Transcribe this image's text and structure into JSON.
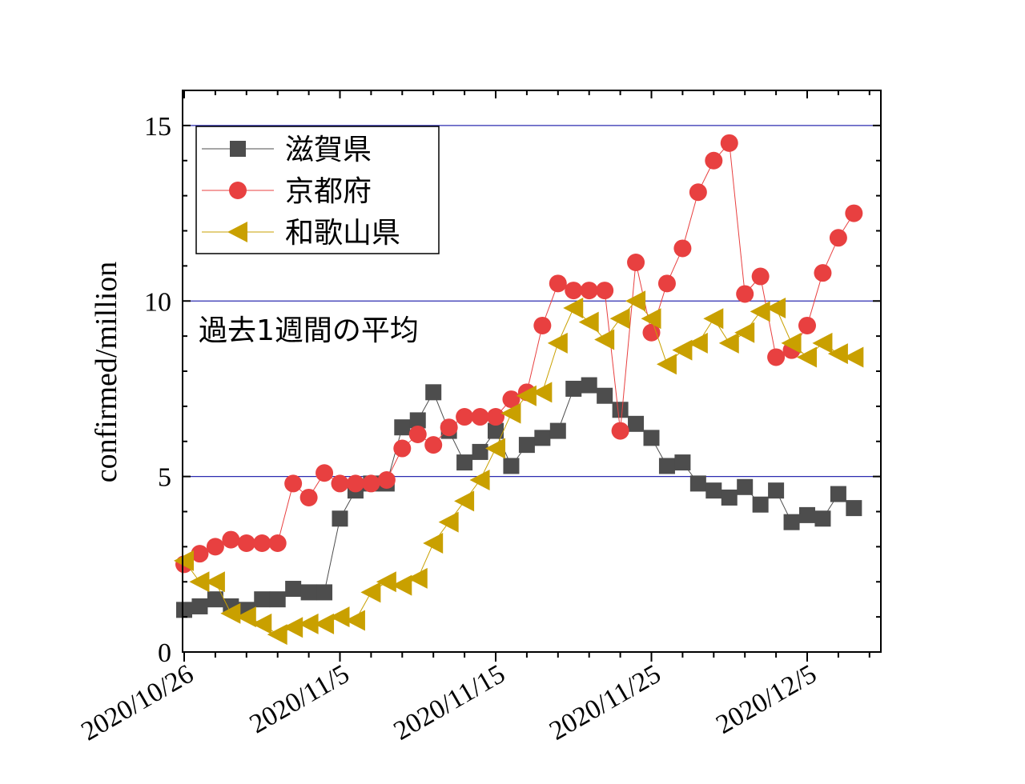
{
  "chart_data": {
    "type": "line",
    "xlabel": "",
    "ylabel": "confirmed/million",
    "annotation": "過去1週間の平均",
    "x_start": "2020/10/26",
    "x_tick_labels": [
      "2020/10/26",
      "2020/11/5",
      "2020/11/15",
      "2020/11/25",
      "2020/12/5"
    ],
    "y_ticks": [
      "0",
      "5",
      "10",
      "15"
    ],
    "ylim": [
      0,
      16
    ],
    "grid": "horizontal lines at 5, 10, 15",
    "legend_position": "top-left",
    "series": [
      {
        "name": "滋賀県",
        "color": "#4d4d4d",
        "marker": "square",
        "values": [
          1.2,
          1.3,
          1.5,
          1.3,
          1.2,
          1.5,
          1.5,
          1.8,
          1.7,
          1.7,
          3.8,
          4.6,
          4.8,
          4.8,
          6.4,
          6.6,
          7.4,
          6.3,
          5.4,
          5.7,
          6.3,
          5.3,
          5.9,
          6.1,
          6.3,
          7.5,
          7.6,
          7.3,
          6.9,
          6.5,
          6.1,
          5.3,
          5.4,
          4.8,
          4.6,
          4.4,
          4.7,
          4.2,
          4.6,
          3.7,
          3.9,
          3.8,
          4.5,
          4.1
        ]
      },
      {
        "name": "京都府",
        "color": "#e84040",
        "marker": "circle",
        "values": [
          2.5,
          2.8,
          3.0,
          3.2,
          3.1,
          3.1,
          3.1,
          4.8,
          4.4,
          5.1,
          4.8,
          4.8,
          4.8,
          4.9,
          5.8,
          6.2,
          5.9,
          6.4,
          6.7,
          6.7,
          6.7,
          7.2,
          7.4,
          9.3,
          10.5,
          10.3,
          10.3,
          10.3,
          6.3,
          11.1,
          9.1,
          10.5,
          11.5,
          13.1,
          14.0,
          14.5,
          10.2,
          10.7,
          8.4,
          8.6,
          9.3,
          10.8,
          11.8,
          12.5
        ]
      },
      {
        "name": "和歌山県",
        "color": "#c9a000",
        "marker": "triangle-left",
        "values": [
          2.6,
          2.0,
          2.0,
          1.1,
          1.0,
          0.8,
          0.5,
          0.7,
          0.8,
          0.8,
          1.0,
          0.9,
          1.7,
          2.0,
          1.9,
          2.1,
          3.1,
          3.7,
          4.3,
          4.9,
          5.8,
          6.8,
          7.3,
          7.4,
          8.8,
          9.8,
          9.4,
          8.9,
          9.5,
          10.0,
          9.5,
          8.2,
          8.6,
          8.8,
          9.5,
          8.8,
          9.1,
          9.7,
          9.8,
          8.8,
          8.4,
          8.8,
          8.5,
          8.4
        ]
      }
    ]
  }
}
